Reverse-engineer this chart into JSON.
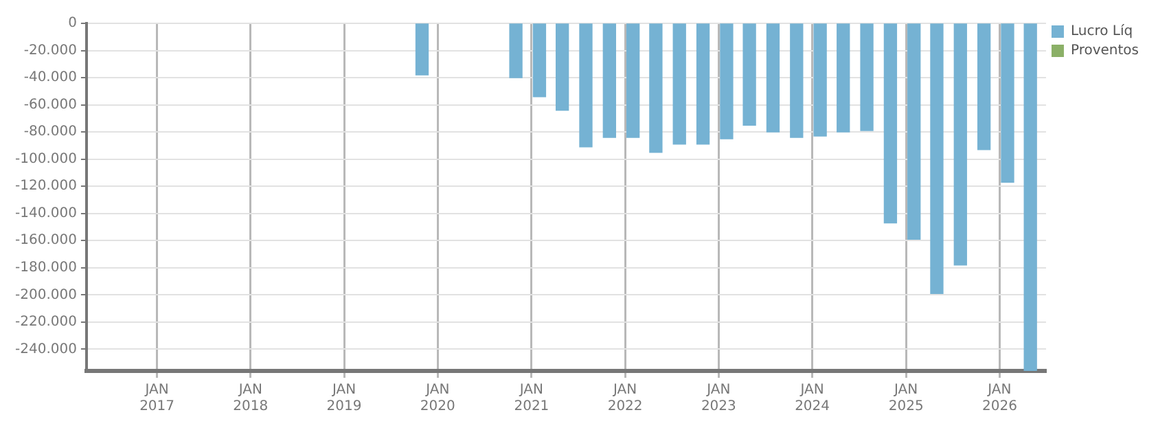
{
  "chart_data": {
    "type": "bar",
    "x": [
      "2019-11",
      "2020-11",
      "2021-02",
      "2021-05",
      "2021-08",
      "2021-11",
      "2022-02",
      "2022-05",
      "2022-08",
      "2022-11",
      "2023-02",
      "2023-05",
      "2023-08",
      "2023-11",
      "2024-02",
      "2024-05",
      "2024-08",
      "2024-11",
      "2025-02",
      "2025-05",
      "2025-08",
      "2025-11",
      "2026-02",
      "2026-05"
    ],
    "series": [
      {
        "name": "Lucro Líq",
        "color": "#75b2d3",
        "values": [
          -38000,
          -40000,
          -54000,
          -64000,
          -91000,
          -84000,
          -84000,
          -95000,
          -89000,
          -89000,
          -85000,
          -75000,
          -80000,
          -84000,
          -83000,
          -80000,
          -79000,
          -147000,
          -159000,
          -199000,
          -178000,
          -93000,
          -117000,
          -256000
        ]
      },
      {
        "name": "Proventos",
        "color": "#8bb067",
        "values": [
          null,
          null,
          null,
          null,
          null,
          null,
          null,
          null,
          null,
          null,
          null,
          null,
          null,
          null,
          null,
          null,
          null,
          null,
          null,
          null,
          null,
          null,
          null,
          null
        ]
      }
    ],
    "xlim": [
      "2016-04",
      "2026-07"
    ],
    "xticks": [
      {
        "value": "2017-01",
        "label": "JAN 2017"
      },
      {
        "value": "2018-01",
        "label": "JAN 2018"
      },
      {
        "value": "2019-01",
        "label": "JAN 2019"
      },
      {
        "value": "2020-01",
        "label": "JAN 2020"
      },
      {
        "value": "2021-01",
        "label": "JAN 2021"
      },
      {
        "value": "2022-01",
        "label": "JAN 2022"
      },
      {
        "value": "2023-01",
        "label": "JAN 2023"
      },
      {
        "value": "2024-01",
        "label": "JAN 2024"
      },
      {
        "value": "2025-01",
        "label": "JAN 2025"
      },
      {
        "value": "2026-01",
        "label": "JAN 2026"
      }
    ],
    "ylim": [
      -256000,
      0
    ],
    "yticks": [
      {
        "value": 0,
        "label": "0"
      },
      {
        "value": -20000,
        "label": "-20.000"
      },
      {
        "value": -40000,
        "label": "-40.000"
      },
      {
        "value": -60000,
        "label": "-60.000"
      },
      {
        "value": -80000,
        "label": "-80.000"
      },
      {
        "value": -100000,
        "label": "-100.000"
      },
      {
        "value": -120000,
        "label": "-120.000"
      },
      {
        "value": -140000,
        "label": "-140.000"
      },
      {
        "value": -160000,
        "label": "-160.000"
      },
      {
        "value": -180000,
        "label": "-180.000"
      },
      {
        "value": -200000,
        "label": "-200.000"
      },
      {
        "value": -220000,
        "label": "-220.000"
      },
      {
        "value": -240000,
        "label": "-240.000"
      }
    ],
    "grid": true,
    "legend": "top right"
  }
}
